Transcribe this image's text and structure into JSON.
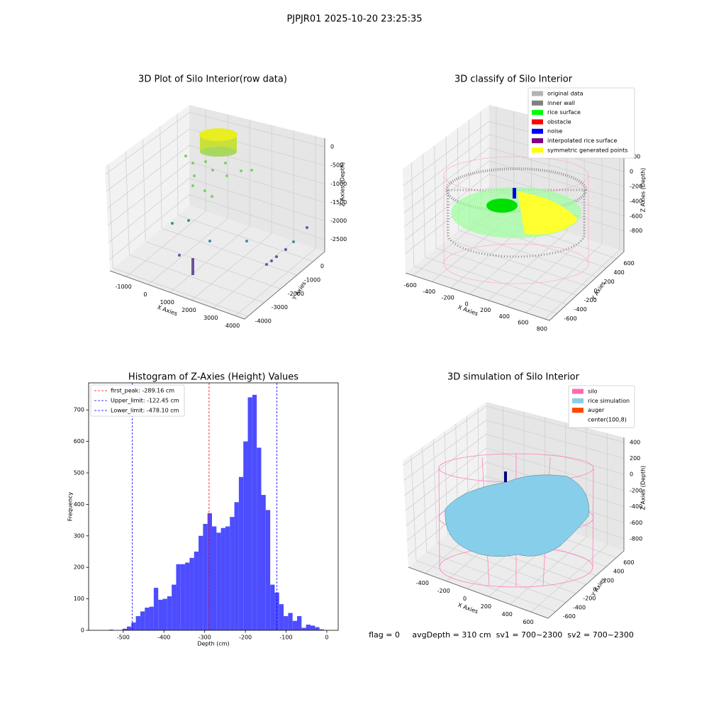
{
  "title": "PJPJR01 2025-10-20 23:25:35",
  "status_text": "flag = 0     avgDepth = 310 cm  sv1 = 700~2300  sv2 = 700~2300",
  "chart_data": [
    {
      "type": "scatter3d",
      "title": "3D Plot of Silo Interior(row data)",
      "xlabel": "X Axies",
      "ylabel": "Y Axies",
      "zlabel": "Z Axies (Depth)",
      "xlim": [
        -1750,
        4420
      ],
      "ylim": [
        -4200,
        700
      ],
      "zlim": [
        -2830,
        230
      ],
      "xticks": [
        -1000,
        0,
        1000,
        2000,
        3000,
        4000
      ],
      "yticks": [
        -4000,
        -3000,
        -2000,
        -1000,
        0
      ],
      "zticks": [
        0,
        -500,
        -1000,
        -1500,
        -2000,
        -2500
      ]
    },
    {
      "type": "scatter3d",
      "title": "3D classify of Silo Interior",
      "xlabel": "X Axies",
      "ylabel": "Y Axies",
      "zlabel": "Z Axies (Depth)",
      "xlim": [
        -680,
        850
      ],
      "ylim": [
        -750,
        750
      ],
      "zlim": [
        -1080,
        450
      ],
      "xticks": [
        -600,
        -400,
        -200,
        0,
        200,
        400,
        600,
        800
      ],
      "yticks": [
        -600,
        -400,
        -200,
        0,
        200,
        400,
        600
      ],
      "zticks": [
        200,
        0,
        -200,
        -400,
        -600,
        -800
      ],
      "legend": [
        {
          "name": "original data",
          "color": "#b3b3b3"
        },
        {
          "name": "inner wall",
          "color": "#808080"
        },
        {
          "name": "rice surface",
          "color": "#00ff00"
        },
        {
          "name": "obstacle",
          "color": "#ff0000"
        },
        {
          "name": "noise",
          "color": "#0000ff"
        },
        {
          "name": "interpolated rice surface",
          "color": "#800080"
        },
        {
          "name": "symmetric generated points",
          "color": "#ffff00"
        }
      ]
    },
    {
      "type": "histogram",
      "title": "Histogram of Z-Axies (Height) Values",
      "xlabel": "Depth (cm)",
      "ylabel": "Frequency",
      "color": "#4d4dff",
      "bins": [
        -546,
        -535,
        -524,
        -513,
        -502,
        -491,
        -480,
        -469,
        -458,
        -447,
        -436,
        -425,
        -414,
        -403,
        -392,
        -381,
        -370,
        -359,
        -348,
        -337,
        -326,
        -315,
        -304,
        -293,
        -282,
        -271,
        -260,
        -249,
        -238,
        -227,
        -216,
        -205,
        -194,
        -183,
        -172,
        -161,
        -150,
        -139,
        -128,
        -117,
        -106,
        -95,
        -84,
        -73,
        -62,
        -51,
        -40,
        -29,
        -18,
        -7,
        4
      ],
      "counts": [
        0,
        2,
        0,
        0,
        5,
        12,
        25,
        45,
        60,
        72,
        75,
        135,
        97,
        100,
        108,
        145,
        210,
        210,
        215,
        230,
        250,
        300,
        338,
        372,
        330,
        310,
        325,
        330,
        360,
        407,
        487,
        600,
        740,
        748,
        580,
        430,
        382,
        145,
        120,
        83,
        45,
        55,
        30,
        45,
        8,
        18,
        15,
        10,
        3,
        0
      ],
      "xlim": [
        -585,
        28
      ],
      "ylim": [
        0,
        786
      ],
      "xticks": [
        -500,
        -400,
        -300,
        -200,
        -100,
        0
      ],
      "yticks": [
        0,
        100,
        200,
        300,
        400,
        500,
        600,
        700
      ],
      "lines": [
        {
          "value": -289.16,
          "label": "first_peak: -289.16 cm",
          "color": "#ff0000"
        },
        {
          "value": -122.45,
          "label": "Upper_limit: -122.45 cm",
          "color": "#0000ff"
        },
        {
          "value": -478.1,
          "label": "Lower_limit: -478.10 cm",
          "color": "#0000ff"
        }
      ]
    },
    {
      "type": "surface3d",
      "title": "3D simulation of Silo Interior",
      "xlabel": "X Axies",
      "ylabel": "Y Axies",
      "zlabel": "Z Axies (Depth)",
      "xlim": [
        -560,
        760
      ],
      "ylim": [
        -750,
        750
      ],
      "zlim": [
        -950,
        460
      ],
      "xticks": [
        -400,
        -200,
        0,
        200,
        400,
        600
      ],
      "yticks": [
        -600,
        -400,
        -200,
        0,
        200,
        400,
        600
      ],
      "zticks": [
        400,
        200,
        0,
        -200,
        -400,
        -600,
        -800
      ],
      "legend": [
        {
          "name": "silo",
          "color": "#ff69b4"
        },
        {
          "name": "rice simulation",
          "color": "#87ceeb"
        },
        {
          "name": "auger",
          "color": "#ff4500"
        },
        {
          "name": "center(100,8)",
          "color": "#ffffff"
        }
      ]
    }
  ]
}
